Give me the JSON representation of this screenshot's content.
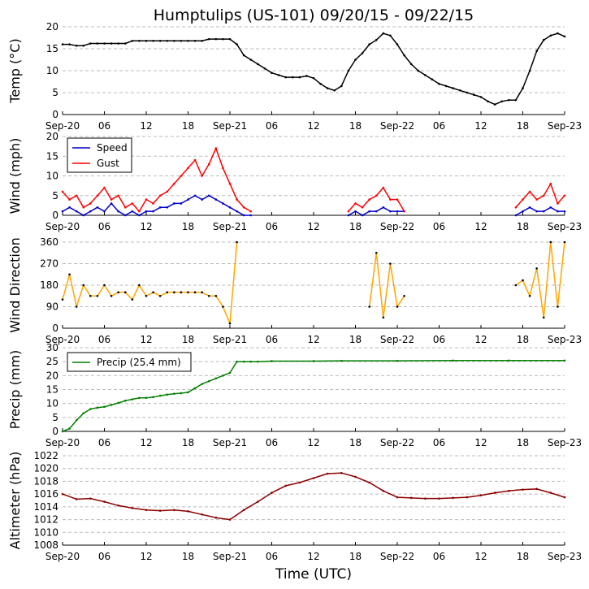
{
  "title": "Humptulips (US-101) 09/20/15 - 09/22/15",
  "xlabel": "Time (UTC)",
  "x_tick_labels": [
    "Sep-20",
    "06",
    "12",
    "18",
    "Sep-21",
    "06",
    "12",
    "18",
    "Sep-22",
    "06",
    "12",
    "18",
    "Sep-23"
  ],
  "colors": {
    "temp": "#000000",
    "speed": "#0000cc",
    "gust": "#ff0000",
    "direction": "#ffa500",
    "precip": "#008000",
    "altimeter": "#8b0000",
    "grid": "#bbbbbb"
  },
  "chart_data": [
    {
      "id": "temp",
      "type": "line",
      "ylabel": "Temp (°C)",
      "ylim": [
        0,
        20
      ],
      "yticks": [
        0,
        5,
        10,
        15,
        20
      ],
      "xlim": [
        0,
        72
      ],
      "series": [
        {
          "name": "Temp",
          "color": "#000000",
          "x": [
            0,
            1,
            2,
            3,
            4,
            5,
            6,
            7,
            8,
            9,
            10,
            11,
            12,
            13,
            14,
            15,
            16,
            17,
            18,
            19,
            20,
            21,
            22,
            23,
            24,
            25,
            26,
            27,
            28,
            29,
            30,
            31,
            32,
            33,
            34,
            35,
            36,
            37,
            38,
            39,
            40,
            41,
            42,
            43,
            44,
            45,
            46,
            47,
            48,
            49,
            50,
            51,
            52,
            53,
            54,
            55,
            56,
            57,
            58,
            59,
            60,
            61,
            62,
            63,
            64,
            65,
            66,
            67,
            68,
            69,
            70,
            71,
            72
          ],
          "y": [
            16,
            16,
            15.7,
            15.7,
            16.2,
            16.2,
            16.2,
            16.2,
            16.2,
            16.2,
            16.8,
            16.8,
            16.8,
            16.8,
            16.8,
            16.8,
            16.8,
            16.8,
            16.8,
            16.8,
            16.8,
            17.2,
            17.2,
            17.2,
            17.2,
            16,
            13.5,
            12.5,
            11.5,
            10.5,
            9.5,
            9,
            8.5,
            8.5,
            8.5,
            8.8,
            8.3,
            7,
            6,
            5.5,
            6.5,
            10,
            12.5,
            14,
            16,
            17,
            18.5,
            18,
            16,
            13.5,
            11.5,
            10,
            9,
            8,
            7,
            6.5,
            6,
            5.5,
            5,
            4.5,
            4,
            3,
            2.3,
            3,
            3.3,
            3.3,
            6,
            10,
            14.5,
            17,
            18,
            18.5,
            17.8
          ]
        }
      ]
    },
    {
      "id": "wind",
      "type": "line",
      "ylabel": "Wind (mph)",
      "ylim": [
        0,
        20
      ],
      "yticks": [
        0,
        5,
        10,
        15,
        20
      ],
      "xlim": [
        0,
        72
      ],
      "legend": {
        "location": "top-left",
        "entries": [
          "Speed",
          "Gust"
        ]
      },
      "series": [
        {
          "name": "Speed",
          "color": "#0000cc",
          "x": [
            0,
            1,
            2,
            3,
            4,
            5,
            6,
            7,
            8,
            9,
            10,
            11,
            12,
            13,
            14,
            15,
            16,
            17,
            18,
            19,
            20,
            21,
            22,
            23,
            24,
            25,
            26,
            27
          ],
          "y": [
            1,
            2,
            1,
            0,
            1,
            2,
            1,
            3,
            1,
            0,
            1,
            0,
            1,
            1,
            2,
            2,
            3,
            3,
            4,
            5,
            4,
            5,
            4,
            3,
            2,
            1,
            0,
            0
          ]
        },
        {
          "name": "Gust",
          "color": "#ff0000",
          "x": [
            0,
            1,
            2,
            3,
            4,
            5,
            6,
            7,
            8,
            9,
            10,
            11,
            12,
            13,
            14,
            15,
            16,
            17,
            18,
            19,
            20,
            21,
            22,
            23,
            24,
            25,
            26,
            27
          ],
          "y": [
            6,
            4,
            5,
            2,
            3,
            5,
            7,
            4,
            5,
            2,
            3,
            1,
            4,
            3,
            5,
            6,
            8,
            10,
            12,
            14,
            10,
            13,
            17,
            12,
            8,
            4,
            2,
            1
          ]
        },
        {
          "name": "Speed",
          "color": "#0000cc",
          "x": [
            41,
            42,
            43,
            44,
            45,
            46,
            47,
            48,
            49
          ],
          "y": [
            0,
            1,
            0,
            1,
            1,
            2,
            1,
            1,
            1
          ]
        },
        {
          "name": "Gust",
          "color": "#ff0000",
          "x": [
            41,
            42,
            43,
            44,
            45,
            46,
            47,
            48,
            49
          ],
          "y": [
            1,
            3,
            2,
            4,
            5,
            7,
            4,
            4,
            1
          ]
        },
        {
          "name": "Speed",
          "color": "#0000cc",
          "x": [
            65,
            66,
            67,
            68,
            69,
            70,
            71,
            72
          ],
          "y": [
            0,
            1,
            2,
            1,
            1,
            2,
            1,
            1
          ]
        },
        {
          "name": "Gust",
          "color": "#ff0000",
          "x": [
            65,
            66,
            67,
            68,
            69,
            70,
            71,
            72
          ],
          "y": [
            2,
            4,
            6,
            4,
            5,
            8,
            3,
            5
          ]
        }
      ]
    },
    {
      "id": "direction",
      "type": "line",
      "ylabel": "Wind Direction",
      "ylim": [
        0,
        360
      ],
      "yticks": [
        0,
        90,
        180,
        270,
        360
      ],
      "xlim": [
        0,
        72
      ],
      "series": [
        {
          "name": "Direction",
          "color": "#ffa500",
          "x": [
            0,
            1,
            2,
            3,
            4,
            5,
            6,
            7,
            8,
            9,
            10,
            11,
            12,
            13,
            14,
            15,
            16,
            17,
            18,
            19,
            20,
            21,
            22,
            23,
            24,
            25
          ],
          "y": [
            120,
            225,
            90,
            180,
            135,
            135,
            180,
            135,
            150,
            150,
            120,
            180,
            135,
            150,
            135,
            150,
            150,
            150,
            150,
            150,
            150,
            135,
            135,
            90,
            20,
            360
          ]
        },
        {
          "name": "Direction",
          "color": "#ffa500",
          "x": [
            44,
            45,
            46,
            47,
            48,
            49
          ],
          "y": [
            90,
            315,
            45,
            270,
            90,
            135
          ]
        },
        {
          "name": "Direction",
          "color": "#ffa500",
          "x": [
            65,
            66,
            67,
            68,
            69,
            70,
            71,
            72
          ],
          "y": [
            180,
            200,
            135,
            250,
            45,
            360,
            90,
            360
          ]
        }
      ]
    },
    {
      "id": "precip",
      "type": "line",
      "ylabel": "Precip (mm)",
      "ylim": [
        0,
        30
      ],
      "yticks": [
        0,
        5,
        10,
        15,
        20,
        25,
        30
      ],
      "xlim": [
        0,
        72
      ],
      "legend": {
        "location": "top-left",
        "entries": [
          "Precip (25.4 mm)"
        ]
      },
      "series": [
        {
          "name": "Precip (25.4 mm)",
          "color": "#008000",
          "x": [
            0,
            1,
            2,
            3,
            4,
            5,
            6,
            7,
            8,
            9,
            10,
            11,
            12,
            13,
            14,
            15,
            16,
            17,
            18,
            19,
            20,
            21,
            22,
            23,
            24,
            25,
            26,
            27,
            28,
            30,
            36,
            40,
            48,
            56,
            64,
            72
          ],
          "y": [
            0,
            1,
            4,
            6.5,
            8,
            8.5,
            8.8,
            9.5,
            10.2,
            11,
            11.5,
            12,
            12,
            12.3,
            12.8,
            13.2,
            13.5,
            13.7,
            14,
            15.5,
            17,
            18,
            19,
            20,
            21,
            25,
            25,
            25,
            25,
            25.2,
            25.2,
            25.3,
            25.3,
            25.4,
            25.4,
            25.4
          ]
        }
      ]
    },
    {
      "id": "altimeter",
      "type": "line",
      "ylabel": "Altimeter (hPa)",
      "ylim": [
        1008,
        1022
      ],
      "yticks": [
        1008,
        1010,
        1012,
        1014,
        1016,
        1018,
        1020,
        1022
      ],
      "xlim": [
        0,
        72
      ],
      "series": [
        {
          "name": "Altimeter",
          "color": "#8b0000",
          "x": [
            0,
            2,
            4,
            6,
            8,
            10,
            12,
            14,
            16,
            18,
            20,
            22,
            24,
            26,
            28,
            30,
            32,
            34,
            36,
            38,
            40,
            42,
            44,
            46,
            48,
            50,
            52,
            54,
            56,
            58,
            60,
            62,
            64,
            66,
            68,
            70,
            72
          ],
          "y": [
            1016,
            1015.2,
            1015.3,
            1014.8,
            1014.2,
            1013.8,
            1013.5,
            1013.4,
            1013.5,
            1013.3,
            1012.8,
            1012.3,
            1012,
            1013.5,
            1014.8,
            1016.2,
            1017.3,
            1017.8,
            1018.5,
            1019.2,
            1019.3,
            1018.7,
            1017.8,
            1016.5,
            1015.5,
            1015.4,
            1015.3,
            1015.3,
            1015.4,
            1015.5,
            1015.8,
            1016.2,
            1016.5,
            1016.7,
            1016.8,
            1016.2,
            1015.5
          ]
        }
      ]
    }
  ]
}
